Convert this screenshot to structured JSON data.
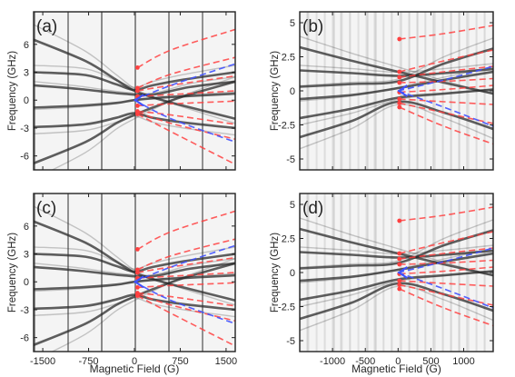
{
  "figure": {
    "xlabel": "Magnetic Field (G)",
    "ylabel": "Frequency (GHz)"
  },
  "colors": {
    "background": "#f4f4f4",
    "trace": "#2b2b2b",
    "red_fit": "#ff4040",
    "blue_fit": "#3f51ff",
    "frame": "#222222"
  },
  "chart_data": [
    {
      "type": "heatmap",
      "panel_label": "(a)",
      "xlim": [
        -1650,
        1650
      ],
      "ylim": [
        9.5,
        -7.5
      ],
      "xticks": [
        -1500,
        -750,
        0,
        750,
        1500
      ],
      "xtick_labels": [
        "-1500",
        "-750",
        "0",
        "750",
        "1500"
      ],
      "yticks": [
        -6,
        -3,
        0,
        3,
        6
      ],
      "ytick_labels": [
        "-6",
        "-3",
        "0",
        "3",
        "6"
      ],
      "dark_traces": [
        {
          "x": [
            -1650,
            -800,
            -300,
            0,
            300,
            800,
            1650
          ],
          "y": [
            -2.9,
            -2.6,
            -1.9,
            -1.4,
            -1.9,
            -2.4,
            -3.0
          ]
        },
        {
          "x": [
            -1650,
            -800,
            -300,
            0,
            300,
            800,
            1650
          ],
          "y": [
            3.0,
            2.7,
            1.7,
            1.1,
            1.6,
            2.2,
            3.0
          ]
        },
        {
          "x": [
            -1650,
            -800,
            -300,
            0,
            300,
            800,
            1650
          ],
          "y": [
            -6.8,
            -4.5,
            -2.5,
            -1.6,
            -0.8,
            0.4,
            2.0
          ]
        },
        {
          "x": [
            -1650,
            -800,
            -300,
            0,
            300,
            800,
            1650
          ],
          "y": [
            6.5,
            4.2,
            2.2,
            1.0,
            0.3,
            -0.6,
            -2.0
          ]
        },
        {
          "x": [
            -1650,
            -900,
            -300,
            0,
            500,
            1650
          ],
          "y": [
            -0.8,
            -0.6,
            -0.3,
            0.0,
            0.3,
            0.7
          ]
        },
        {
          "x": [
            -1650,
            -900,
            -200,
            300,
            900,
            1650
          ],
          "y": [
            1.6,
            1.2,
            0.7,
            0.6,
            1.4,
            2.0
          ]
        }
      ],
      "red_fits": [
        {
          "x": [
            50,
            600,
            1650
          ],
          "y": [
            -1.5,
            -3.4,
            -6.9
          ]
        },
        {
          "x": [
            50,
            600,
            1650
          ],
          "y": [
            -1.3,
            -2.5,
            -4.2
          ]
        },
        {
          "x": [
            50,
            600,
            1650
          ],
          "y": [
            -1.2,
            -1.6,
            -2.6
          ]
        },
        {
          "x": [
            50,
            600,
            1650
          ],
          "y": [
            -0.6,
            -0.4,
            -0.1
          ]
        },
        {
          "x": [
            50,
            600,
            1650
          ],
          "y": [
            0.4,
            0.6,
            1.0
          ]
        },
        {
          "x": [
            50,
            600,
            1650
          ],
          "y": [
            1.0,
            1.6,
            2.6
          ]
        },
        {
          "x": [
            50,
            600,
            1650
          ],
          "y": [
            1.3,
            2.8,
            4.6
          ]
        },
        {
          "x": [
            50,
            600,
            1650
          ],
          "y": [
            3.5,
            5.4,
            7.6
          ]
        }
      ],
      "blue_fits": [
        {
          "x": [
            0,
            600,
            1650
          ],
          "y": [
            0.0,
            -2.0,
            -4.5
          ]
        },
        {
          "x": [
            0,
            600,
            1650
          ],
          "y": [
            0.0,
            1.6,
            3.9
          ]
        }
      ]
    },
    {
      "type": "heatmap",
      "panel_label": "(b)",
      "xlim": [
        -1500,
        1450
      ],
      "ylim": [
        5.8,
        -5.8
      ],
      "xticks": [
        -1000,
        -500,
        0,
        500,
        1000
      ],
      "xtick_labels": [
        "-1000",
        "-500",
        "0",
        "500",
        "1000"
      ],
      "yticks": [
        -5,
        -2.5,
        0,
        2.5,
        5
      ],
      "ytick_labels": [
        "-5",
        "-2.5",
        "0",
        "2.5",
        "5"
      ],
      "dark_traces": [
        {
          "x": [
            -1500,
            -700,
            0,
            700,
            1450
          ],
          "y": [
            -3.4,
            -2.2,
            -0.8,
            -1.6,
            -2.8
          ]
        },
        {
          "x": [
            -1500,
            -700,
            0,
            700,
            1450
          ],
          "y": [
            -2.0,
            -1.3,
            -0.5,
            -0.2,
            0.1
          ]
        },
        {
          "x": [
            -1500,
            -700,
            0,
            700,
            1450
          ],
          "y": [
            -0.6,
            -0.3,
            0.2,
            0.8,
            1.4
          ]
        },
        {
          "x": [
            -1500,
            -700,
            0,
            700,
            1450
          ],
          "y": [
            1.5,
            1.3,
            1.1,
            1.3,
            1.6
          ]
        },
        {
          "x": [
            -1500,
            -700,
            0,
            700,
            1450
          ],
          "y": [
            3.2,
            2.2,
            1.4,
            0.6,
            -0.2
          ]
        },
        {
          "x": [
            -1500,
            -700,
            0,
            700,
            1450
          ],
          "y": [
            0.3,
            0.5,
            0.7,
            2.0,
            3.1
          ]
        }
      ],
      "red_fits": [
        {
          "x": [
            20,
            700,
            1450
          ],
          "y": [
            -1.2,
            -2.6,
            -3.9
          ]
        },
        {
          "x": [
            20,
            700,
            1450
          ],
          "y": [
            -0.9,
            -1.6,
            -2.4
          ]
        },
        {
          "x": [
            20,
            700,
            1450
          ],
          "y": [
            -0.6,
            -0.8,
            -1.0
          ]
        },
        {
          "x": [
            20,
            700,
            1450
          ],
          "y": [
            -0.1,
            0.1,
            0.4
          ]
        },
        {
          "x": [
            20,
            700,
            1450
          ],
          "y": [
            0.6,
            0.7,
            0.9
          ]
        },
        {
          "x": [
            20,
            700,
            1450
          ],
          "y": [
            1.0,
            1.4,
            1.8
          ]
        },
        {
          "x": [
            20,
            700,
            1450
          ],
          "y": [
            1.4,
            2.2,
            3.0
          ]
        },
        {
          "x": [
            20,
            700,
            1450
          ],
          "y": [
            3.8,
            4.2,
            4.8
          ]
        }
      ],
      "blue_fits": [
        {
          "x": [
            0,
            700,
            1450
          ],
          "y": [
            0.0,
            -1.2,
            -2.6
          ]
        },
        {
          "x": [
            0,
            700,
            1450
          ],
          "y": [
            0.0,
            0.8,
            1.8
          ]
        }
      ]
    },
    {
      "type": "heatmap",
      "panel_label": "(c)",
      "xlim": [
        -1650,
        1650
      ],
      "ylim": [
        9.5,
        -7.5
      ],
      "xticks": [
        -1500,
        -750,
        0,
        750,
        1500
      ],
      "xtick_labels": [
        "-1500",
        "-750",
        "0",
        "750",
        "1500"
      ],
      "yticks": [
        -6,
        -3,
        0,
        3,
        6
      ],
      "ytick_labels": [
        "-6",
        "-3",
        "0",
        "3",
        "6"
      ],
      "dark_traces": [
        {
          "x": [
            -1650,
            -800,
            -300,
            0,
            300,
            800,
            1650
          ],
          "y": [
            -2.9,
            -2.6,
            -1.9,
            -1.4,
            -1.9,
            -2.4,
            -3.0
          ]
        },
        {
          "x": [
            -1650,
            -800,
            -300,
            0,
            300,
            800,
            1650
          ],
          "y": [
            3.0,
            2.7,
            1.7,
            1.1,
            1.6,
            2.2,
            3.0
          ]
        },
        {
          "x": [
            -1650,
            -800,
            -300,
            0,
            300,
            800,
            1650
          ],
          "y": [
            -6.8,
            -4.5,
            -2.5,
            -1.6,
            -0.8,
            0.4,
            2.0
          ]
        },
        {
          "x": [
            -1650,
            -800,
            -300,
            0,
            300,
            800,
            1650
          ],
          "y": [
            6.5,
            4.2,
            2.2,
            1.0,
            0.3,
            -0.6,
            -2.0
          ]
        },
        {
          "x": [
            -1650,
            -900,
            -300,
            0,
            500,
            1650
          ],
          "y": [
            -0.8,
            -0.6,
            -0.3,
            0.0,
            0.3,
            0.7
          ]
        },
        {
          "x": [
            -1650,
            -900,
            -200,
            300,
            900,
            1650
          ],
          "y": [
            1.6,
            1.2,
            0.7,
            0.6,
            1.4,
            2.0
          ]
        }
      ],
      "red_fits": [
        {
          "x": [
            50,
            600,
            1650
          ],
          "y": [
            -1.5,
            -3.4,
            -6.9
          ]
        },
        {
          "x": [
            50,
            600,
            1650
          ],
          "y": [
            -1.3,
            -2.5,
            -4.2
          ]
        },
        {
          "x": [
            50,
            600,
            1650
          ],
          "y": [
            -1.2,
            -1.6,
            -2.6
          ]
        },
        {
          "x": [
            50,
            600,
            1650
          ],
          "y": [
            -0.6,
            -0.4,
            -0.1
          ]
        },
        {
          "x": [
            50,
            600,
            1650
          ],
          "y": [
            0.4,
            0.6,
            1.0
          ]
        },
        {
          "x": [
            50,
            600,
            1650
          ],
          "y": [
            1.0,
            1.6,
            2.6
          ]
        },
        {
          "x": [
            50,
            600,
            1650
          ],
          "y": [
            1.3,
            2.8,
            4.6
          ]
        },
        {
          "x": [
            50,
            600,
            1650
          ],
          "y": [
            3.5,
            5.4,
            7.6
          ]
        }
      ],
      "blue_fits": [
        {
          "x": [
            0,
            600,
            1650
          ],
          "y": [
            0.0,
            -2.0,
            -4.5
          ]
        },
        {
          "x": [
            0,
            600,
            1650
          ],
          "y": [
            0.0,
            1.6,
            3.9
          ]
        }
      ]
    },
    {
      "type": "heatmap",
      "panel_label": "(d)",
      "xlim": [
        -1500,
        1450
      ],
      "ylim": [
        5.8,
        -5.8
      ],
      "xticks": [
        -1000,
        -500,
        0,
        500,
        1000
      ],
      "xtick_labels": [
        "-1000",
        "-500",
        "0",
        "500",
        "1000"
      ],
      "yticks": [
        -5,
        -2.5,
        0,
        2.5,
        5
      ],
      "ytick_labels": [
        "-5",
        "-2.5",
        "0",
        "2.5",
        "5"
      ],
      "dark_traces": [
        {
          "x": [
            -1500,
            -700,
            0,
            700,
            1450
          ],
          "y": [
            -3.4,
            -2.2,
            -0.8,
            -1.6,
            -2.8
          ]
        },
        {
          "x": [
            -1500,
            -700,
            0,
            700,
            1450
          ],
          "y": [
            -2.0,
            -1.3,
            -0.5,
            -0.2,
            0.1
          ]
        },
        {
          "x": [
            -1500,
            -700,
            0,
            700,
            1450
          ],
          "y": [
            -0.6,
            -0.3,
            0.2,
            0.8,
            1.4
          ]
        },
        {
          "x": [
            -1500,
            -700,
            0,
            700,
            1450
          ],
          "y": [
            1.5,
            1.3,
            1.1,
            1.3,
            1.6
          ]
        },
        {
          "x": [
            -1500,
            -700,
            0,
            700,
            1450
          ],
          "y": [
            3.2,
            2.2,
            1.4,
            0.6,
            -0.2
          ]
        },
        {
          "x": [
            -1500,
            -700,
            0,
            700,
            1450
          ],
          "y": [
            0.3,
            0.5,
            0.7,
            2.0,
            3.1
          ]
        }
      ],
      "red_fits": [
        {
          "x": [
            20,
            700,
            1450
          ],
          "y": [
            -1.2,
            -2.6,
            -3.9
          ]
        },
        {
          "x": [
            20,
            700,
            1450
          ],
          "y": [
            -0.9,
            -1.6,
            -2.4
          ]
        },
        {
          "x": [
            20,
            700,
            1450
          ],
          "y": [
            -0.6,
            -0.8,
            -1.0
          ]
        },
        {
          "x": [
            20,
            700,
            1450
          ],
          "y": [
            -0.1,
            0.1,
            0.4
          ]
        },
        {
          "x": [
            20,
            700,
            1450
          ],
          "y": [
            0.6,
            0.7,
            0.9
          ]
        },
        {
          "x": [
            20,
            700,
            1450
          ],
          "y": [
            1.0,
            1.4,
            1.8
          ]
        },
        {
          "x": [
            20,
            700,
            1450
          ],
          "y": [
            1.4,
            2.2,
            3.0
          ]
        },
        {
          "x": [
            20,
            700,
            1450
          ],
          "y": [
            3.8,
            4.2,
            4.8
          ]
        }
      ],
      "blue_fits": [
        {
          "x": [
            0,
            700,
            1450
          ],
          "y": [
            0.0,
            -1.2,
            -2.6
          ]
        },
        {
          "x": [
            0,
            700,
            1450
          ],
          "y": [
            0.0,
            0.8,
            1.8
          ]
        }
      ]
    }
  ]
}
